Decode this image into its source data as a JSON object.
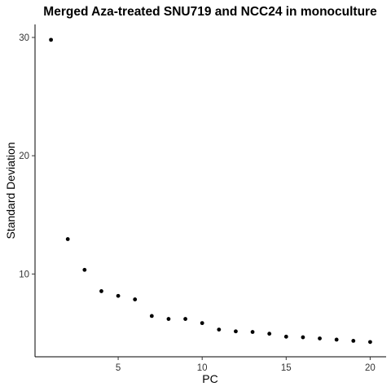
{
  "chart_data": {
    "type": "scatter",
    "title": "Merged Aza-treated SNU719 and NCC24 in monoculture",
    "xlabel": "PC",
    "ylabel": "Standard Deviation",
    "xlim": [
      0.05,
      20.95
    ],
    "ylim": [
      3.0,
      31.1
    ],
    "x_ticks": [
      5,
      10,
      15,
      20
    ],
    "y_ticks": [
      10,
      20,
      30
    ],
    "grid": false,
    "points_color": "#000000",
    "x": [
      1,
      2,
      3,
      4,
      5,
      6,
      7,
      8,
      9,
      10,
      11,
      12,
      13,
      14,
      15,
      16,
      17,
      18,
      19,
      20
    ],
    "y": [
      29.8,
      12.95,
      10.35,
      8.55,
      8.15,
      7.85,
      6.45,
      6.2,
      6.2,
      5.85,
      5.3,
      5.15,
      5.1,
      4.95,
      4.7,
      4.65,
      4.55,
      4.45,
      4.35,
      4.25
    ]
  }
}
